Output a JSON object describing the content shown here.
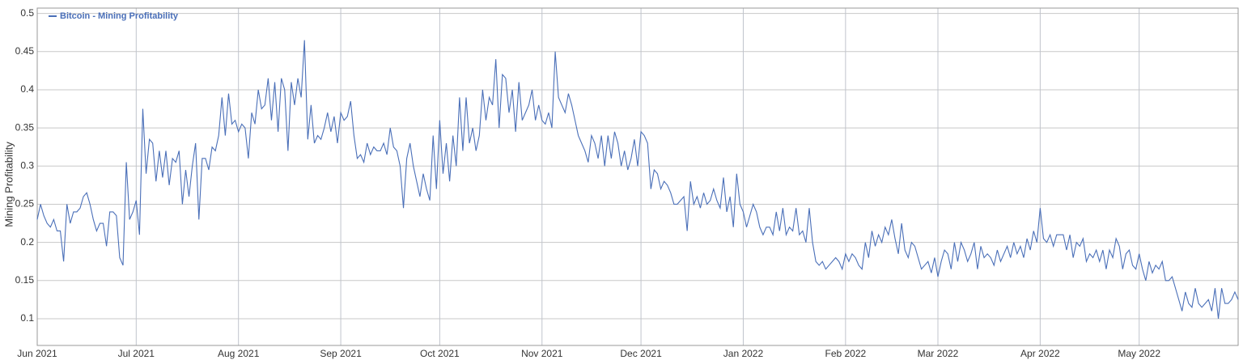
{
  "chart_data": {
    "type": "line",
    "y_label": "Mining Profitability",
    "grid": true,
    "legend_position": "top-left",
    "xlim": [
      0,
      364
    ],
    "ylim": [
      0.065,
      0.507
    ],
    "yticks": [
      0.1,
      0.15,
      0.2,
      0.25,
      0.3,
      0.35,
      0.4,
      0.45,
      0.5
    ],
    "xticks": [
      {
        "value": 0,
        "label": "Jun 2021"
      },
      {
        "value": 30,
        "label": "Jul 2021"
      },
      {
        "value": 61,
        "label": "Aug 2021"
      },
      {
        "value": 92,
        "label": "Sep 2021"
      },
      {
        "value": 122,
        "label": "Oct 2021"
      },
      {
        "value": 153,
        "label": "Nov 2021"
      },
      {
        "value": 183,
        "label": "Dec 2021"
      },
      {
        "value": 214,
        "label": "Jan 2022"
      },
      {
        "value": 245,
        "label": "Feb 2022"
      },
      {
        "value": 273,
        "label": "Mar 2022"
      },
      {
        "value": 304,
        "label": "Apr 2022"
      },
      {
        "value": 334,
        "label": "May 2022"
      }
    ],
    "series": [
      {
        "name": "Bitcoin - Mining Profitability",
        "color": "#4a6fb8",
        "values": [
          0.23,
          0.25,
          0.235,
          0.225,
          0.22,
          0.23,
          0.215,
          0.215,
          0.175,
          0.25,
          0.225,
          0.24,
          0.24,
          0.245,
          0.26,
          0.265,
          0.25,
          0.23,
          0.215,
          0.225,
          0.225,
          0.195,
          0.24,
          0.24,
          0.235,
          0.18,
          0.17,
          0.305,
          0.23,
          0.24,
          0.255,
          0.21,
          0.375,
          0.29,
          0.335,
          0.33,
          0.28,
          0.32,
          0.285,
          0.32,
          0.275,
          0.31,
          0.305,
          0.32,
          0.25,
          0.295,
          0.26,
          0.3,
          0.33,
          0.23,
          0.31,
          0.31,
          0.295,
          0.325,
          0.32,
          0.34,
          0.39,
          0.34,
          0.395,
          0.355,
          0.36,
          0.345,
          0.355,
          0.35,
          0.31,
          0.37,
          0.355,
          0.4,
          0.375,
          0.38,
          0.415,
          0.36,
          0.41,
          0.345,
          0.415,
          0.4,
          0.32,
          0.41,
          0.38,
          0.415,
          0.39,
          0.465,
          0.335,
          0.38,
          0.33,
          0.34,
          0.335,
          0.35,
          0.37,
          0.345,
          0.365,
          0.33,
          0.37,
          0.36,
          0.365,
          0.385,
          0.34,
          0.31,
          0.315,
          0.305,
          0.33,
          0.315,
          0.325,
          0.32,
          0.32,
          0.33,
          0.315,
          0.35,
          0.325,
          0.32,
          0.3,
          0.245,
          0.31,
          0.33,
          0.3,
          0.28,
          0.26,
          0.29,
          0.27,
          0.255,
          0.34,
          0.27,
          0.36,
          0.29,
          0.33,
          0.28,
          0.34,
          0.3,
          0.39,
          0.32,
          0.39,
          0.33,
          0.35,
          0.32,
          0.34,
          0.4,
          0.36,
          0.39,
          0.38,
          0.44,
          0.35,
          0.42,
          0.415,
          0.37,
          0.4,
          0.345,
          0.41,
          0.36,
          0.37,
          0.38,
          0.4,
          0.36,
          0.38,
          0.36,
          0.355,
          0.37,
          0.35,
          0.45,
          0.39,
          0.38,
          0.37,
          0.395,
          0.38,
          0.36,
          0.34,
          0.33,
          0.32,
          0.305,
          0.34,
          0.33,
          0.31,
          0.34,
          0.3,
          0.34,
          0.31,
          0.345,
          0.33,
          0.3,
          0.32,
          0.295,
          0.31,
          0.335,
          0.3,
          0.345,
          0.34,
          0.33,
          0.27,
          0.295,
          0.29,
          0.27,
          0.28,
          0.275,
          0.265,
          0.25,
          0.25,
          0.255,
          0.26,
          0.215,
          0.28,
          0.25,
          0.26,
          0.245,
          0.265,
          0.25,
          0.255,
          0.27,
          0.255,
          0.245,
          0.285,
          0.24,
          0.26,
          0.22,
          0.29,
          0.25,
          0.24,
          0.22,
          0.235,
          0.25,
          0.24,
          0.22,
          0.21,
          0.22,
          0.22,
          0.21,
          0.24,
          0.215,
          0.245,
          0.21,
          0.22,
          0.215,
          0.245,
          0.21,
          0.215,
          0.2,
          0.245,
          0.2,
          0.175,
          0.17,
          0.175,
          0.165,
          0.17,
          0.175,
          0.18,
          0.175,
          0.165,
          0.185,
          0.175,
          0.185,
          0.18,
          0.17,
          0.165,
          0.2,
          0.18,
          0.215,
          0.195,
          0.21,
          0.2,
          0.22,
          0.21,
          0.23,
          0.205,
          0.185,
          0.225,
          0.19,
          0.18,
          0.2,
          0.195,
          0.18,
          0.165,
          0.17,
          0.175,
          0.16,
          0.18,
          0.155,
          0.175,
          0.19,
          0.185,
          0.165,
          0.2,
          0.175,
          0.2,
          0.19,
          0.175,
          0.185,
          0.2,
          0.165,
          0.195,
          0.18,
          0.185,
          0.18,
          0.17,
          0.19,
          0.175,
          0.185,
          0.195,
          0.18,
          0.2,
          0.185,
          0.195,
          0.18,
          0.205,
          0.19,
          0.215,
          0.2,
          0.245,
          0.205,
          0.2,
          0.21,
          0.195,
          0.21,
          0.21,
          0.21,
          0.19,
          0.21,
          0.18,
          0.2,
          0.195,
          0.205,
          0.175,
          0.185,
          0.18,
          0.19,
          0.175,
          0.19,
          0.165,
          0.19,
          0.18,
          0.205,
          0.195,
          0.165,
          0.185,
          0.19,
          0.17,
          0.165,
          0.185,
          0.165,
          0.15,
          0.175,
          0.16,
          0.17,
          0.165,
          0.175,
          0.15,
          0.15,
          0.155,
          0.14,
          0.125,
          0.11,
          0.135,
          0.12,
          0.115,
          0.14,
          0.12,
          0.115,
          0.12,
          0.125,
          0.11,
          0.14,
          0.1,
          0.14,
          0.12,
          0.12,
          0.125,
          0.135,
          0.125
        ]
      }
    ]
  }
}
